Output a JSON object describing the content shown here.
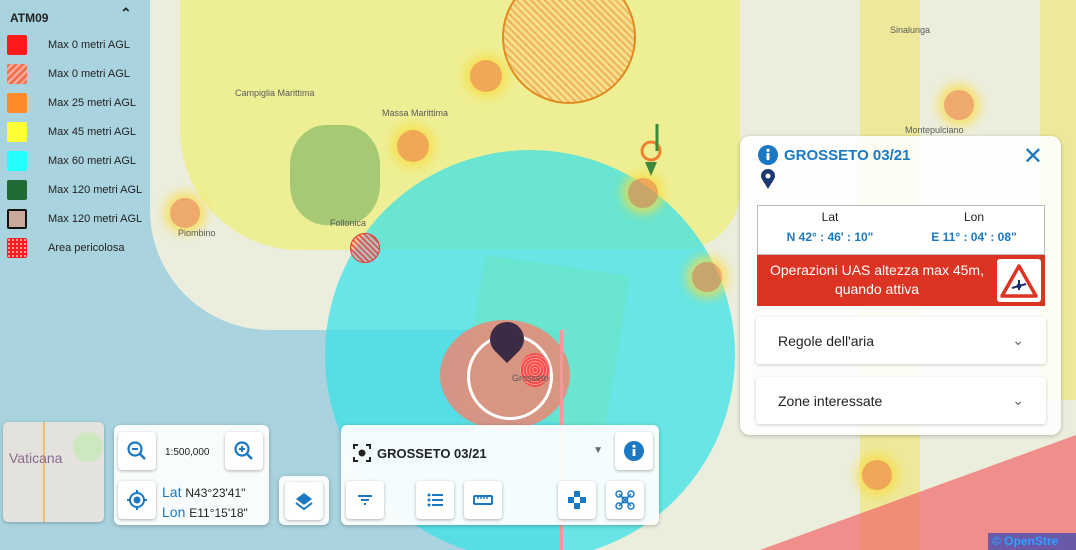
{
  "map": {
    "labels": [
      "Campiglia Marittima",
      "Massa Marittima",
      "Follonica",
      "Piombino",
      "Grosseto",
      "Montepulciano",
      "Sinalunga",
      "Vaticana"
    ],
    "attribution": "© OpenStre"
  },
  "legend": {
    "title": "ATM09",
    "collapse_icon": "chevron-up-icon",
    "items": [
      {
        "label": "Max 0 metri AGL",
        "color": "#ff1a1a",
        "style": "solid"
      },
      {
        "label": "Max 0 metri AGL",
        "color": "#f07050",
        "style": "hatched"
      },
      {
        "label": "Max 25 metri AGL",
        "color": "#ff8a2a",
        "style": "solid"
      },
      {
        "label": "Max 45 metri AGL",
        "color": "#ffff33",
        "style": "solid"
      },
      {
        "label": "Max 60 metri AGL",
        "color": "#22ffff",
        "style": "solid"
      },
      {
        "label": "Max 120 metri AGL",
        "color": "#1e6b36",
        "style": "solid"
      },
      {
        "label": "Max 120 metri AGL",
        "color": "#c9a999",
        "style": "outlined"
      },
      {
        "label": "Area pericolosa",
        "color": "#ff1a1a",
        "style": "dotted"
      }
    ]
  },
  "info_panel": {
    "title": "GROSSETO 03/21",
    "lat_label": "Lat",
    "lon_label": "Lon",
    "lat_value": "N 42° : 46' : 10\"",
    "lon_value": "E 11° : 04' : 08\"",
    "warning": "Operazioni UAS altezza max 45m, quando attiva",
    "warning_color": "#dc3322",
    "accordions": [
      {
        "label": "Regole dell'aria"
      },
      {
        "label": "Zone interessate"
      }
    ]
  },
  "zoom_panel": {
    "scale": "1:500,000",
    "lat_label": "Lat",
    "lat_value": "N43°23'41\"",
    "lon_label": "Lon",
    "lon_value": "E11°15'18\""
  },
  "tool_panel": {
    "selected_zone": "GROSSETO 03/21"
  },
  "accent": "#1a79c2"
}
